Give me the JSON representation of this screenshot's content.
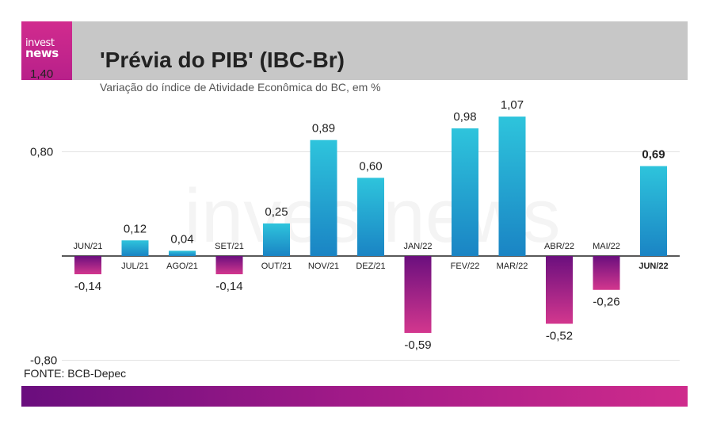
{
  "header": {
    "title": "'Prévia do PIB' (IBC-Br)",
    "subtitle": "Variação do índice de Atividade Econômica do BC, em %",
    "logo_line1": "invest",
    "logo_line2": "news"
  },
  "source": "FONTE: BCB-Depec",
  "watermark": "investnews",
  "colors": {
    "positive_top": "#2ec4dc",
    "positive_bottom": "#1a84c4",
    "negative_top": "#6b0f7e",
    "negative_bottom": "#d3378e",
    "header_bg": "#c7c7c7",
    "logo_bg": "#c2238b"
  },
  "chart_data": {
    "type": "bar",
    "categories": [
      "JUN/21",
      "JUL/21",
      "AGO/21",
      "SET/21",
      "OUT/21",
      "NOV/21",
      "DEZ/21",
      "JAN/22",
      "FEV/22",
      "MAR/22",
      "ABR/22",
      "MAI/22",
      "JUN/22"
    ],
    "values": [
      -0.14,
      0.12,
      0.04,
      -0.14,
      0.25,
      0.89,
      0.6,
      -0.59,
      0.98,
      1.07,
      -0.52,
      -0.26,
      0.69
    ],
    "value_labels": [
      "-0,14",
      "0,12",
      "0,04",
      "-0,14",
      "0,25",
      "0,89",
      "0,60",
      "-0,59",
      "0,98",
      "1,07",
      "-0,52",
      "-0,26",
      "0,69"
    ],
    "highlight_index": 12,
    "ylim": [
      -0.8,
      1.4
    ],
    "yticks": [
      -0.8,
      0.8,
      1.4
    ],
    "ytick_labels": [
      "-0,80",
      "0,80",
      "1,40"
    ],
    "grid": true,
    "title": "'Prévia do PIB' (IBC-Br)",
    "xlabel": "",
    "ylabel": ""
  }
}
